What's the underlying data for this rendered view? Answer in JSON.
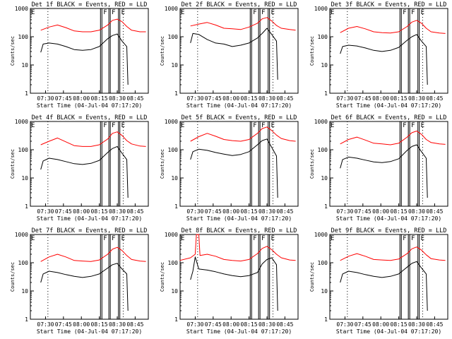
{
  "colors": {
    "events": "#000000",
    "lld": "#ff0000",
    "background": "#ffffff"
  },
  "common": {
    "ylabel": "Counts/sec",
    "xlabel": "Start Time (04-Jul-04 07:17:20)",
    "xticks": [
      "07:30",
      "07:45",
      "08:00",
      "08:15",
      "08:30",
      "08:45"
    ],
    "yticks": [
      "1",
      "10",
      "100",
      "1000"
    ],
    "ylim": [
      1,
      1000
    ],
    "yscale": "log",
    "xlim": [
      "07:17:20",
      "08:56"
    ],
    "dotted_lines": [
      "07:32",
      "08:35"
    ],
    "markers": [
      {
        "time": "08:16",
        "label": "F"
      },
      {
        "time": "08:23",
        "label": "F"
      },
      {
        "time": "08:31",
        "label": "E"
      }
    ],
    "left_marker": "E"
  },
  "chart_data": [
    {
      "type": "line",
      "title": "Det 1f BLACK = Events, RED = LLD",
      "series": [
        {
          "x": [
            "07:26",
            "07:33",
            "07:40",
            "07:47",
            "07:54",
            "08:01",
            "08:08",
            "08:15",
            "08:22",
            "08:26",
            "08:30",
            "08:34",
            "08:38",
            "08:42",
            "08:49",
            "08:54"
          ],
          "values": [
            170,
            220,
            260,
            210,
            160,
            150,
            150,
            170,
            260,
            380,
            420,
            340,
            230,
            170,
            150,
            150
          ]
        },
        {
          "x": [
            "07:26",
            "07:28",
            "07:33",
            "07:40",
            "07:47",
            "07:54",
            "08:01",
            "08:08",
            "08:15",
            "08:22",
            "08:26",
            "08:30",
            "08:34",
            "08:38",
            "08:39"
          ],
          "values": [
            28,
            55,
            60,
            55,
            45,
            35,
            33,
            35,
            45,
            85,
            110,
            125,
            70,
            45,
            2
          ]
        }
      ]
    },
    {
      "type": "line",
      "title": "Det 2f BLACK = Events, RED = LLD",
      "series": [
        {
          "x": [
            "07:26",
            "07:33",
            "07:40",
            "07:47",
            "07:54",
            "08:01",
            "08:08",
            "08:15",
            "08:22",
            "08:26",
            "08:30",
            "08:34",
            "08:38",
            "08:42",
            "08:49",
            "08:54"
          ],
          "values": [
            240,
            280,
            320,
            260,
            200,
            190,
            180,
            220,
            300,
            430,
            480,
            360,
            250,
            200,
            180,
            170
          ]
        },
        {
          "x": [
            "07:26",
            "07:28",
            "07:33",
            "07:40",
            "07:47",
            "07:54",
            "08:01",
            "08:08",
            "08:15",
            "08:22",
            "08:26",
            "08:30",
            "08:34",
            "08:38",
            "08:39"
          ],
          "values": [
            60,
            130,
            120,
            80,
            60,
            55,
            45,
            50,
            60,
            90,
            130,
            200,
            120,
            70,
            3
          ]
        }
      ]
    },
    {
      "type": "line",
      "title": "Det 3f BLACK = Events, RED = LLD",
      "series": [
        {
          "x": [
            "07:26",
            "07:33",
            "07:40",
            "07:47",
            "07:54",
            "08:01",
            "08:08",
            "08:15",
            "08:22",
            "08:26",
            "08:30",
            "08:34",
            "08:38",
            "08:42",
            "08:49",
            "08:54"
          ],
          "values": [
            140,
            200,
            230,
            190,
            150,
            140,
            135,
            150,
            230,
            330,
            380,
            300,
            200,
            150,
            135,
            130
          ]
        },
        {
          "x": [
            "07:26",
            "07:28",
            "07:33",
            "07:40",
            "07:47",
            "07:54",
            "08:01",
            "08:08",
            "08:15",
            "08:22",
            "08:26",
            "08:30",
            "08:34",
            "08:38",
            "08:39"
          ],
          "values": [
            25,
            45,
            50,
            47,
            40,
            33,
            30,
            33,
            42,
            75,
            100,
            120,
            70,
            45,
            2
          ]
        }
      ]
    },
    {
      "type": "line",
      "title": "Det 4f BLACK = Events, RED = LLD",
      "series": [
        {
          "x": [
            "07:26",
            "07:33",
            "07:40",
            "07:47",
            "07:54",
            "08:01",
            "08:08",
            "08:15",
            "08:22",
            "08:26",
            "08:30",
            "08:34",
            "08:38",
            "08:42",
            "08:49",
            "08:54"
          ],
          "values": [
            150,
            200,
            260,
            190,
            140,
            130,
            130,
            150,
            240,
            380,
            430,
            320,
            210,
            160,
            135,
            130
          ]
        },
        {
          "x": [
            "07:26",
            "07:28",
            "07:33",
            "07:40",
            "07:47",
            "07:54",
            "08:01",
            "08:08",
            "08:15",
            "08:22",
            "08:26",
            "08:30",
            "08:34",
            "08:38",
            "08:39"
          ],
          "values": [
            20,
            40,
            50,
            45,
            38,
            32,
            30,
            33,
            42,
            80,
            110,
            130,
            75,
            45,
            2
          ]
        }
      ]
    },
    {
      "type": "line",
      "title": "Det 5f BLACK = Events, RED = LLD",
      "series": [
        {
          "x": [
            "07:26",
            "07:33",
            "07:40",
            "07:47",
            "07:54",
            "08:01",
            "08:08",
            "08:15",
            "08:22",
            "08:26",
            "08:30",
            "08:34",
            "08:38",
            "08:42",
            "08:49",
            "08:54"
          ],
          "values": [
            200,
            290,
            380,
            300,
            230,
            210,
            200,
            230,
            380,
            560,
            640,
            480,
            330,
            250,
            210,
            200
          ]
        },
        {
          "x": [
            "07:26",
            "07:28",
            "07:33",
            "07:40",
            "07:47",
            "07:54",
            "08:01",
            "08:08",
            "08:15",
            "08:22",
            "08:26",
            "08:30",
            "08:34",
            "08:38",
            "08:39"
          ],
          "values": [
            45,
            85,
            105,
            95,
            80,
            70,
            62,
            68,
            85,
            150,
            210,
            240,
            120,
            60,
            2
          ]
        }
      ]
    },
    {
      "type": "line",
      "title": "Det 6f BLACK = Events, RED = LLD",
      "series": [
        {
          "x": [
            "07:26",
            "07:33",
            "07:40",
            "07:47",
            "07:54",
            "08:01",
            "08:08",
            "08:15",
            "08:22",
            "08:26",
            "08:30",
            "08:34",
            "08:38",
            "08:42",
            "08:49",
            "08:54"
          ],
          "values": [
            160,
            230,
            280,
            220,
            170,
            160,
            150,
            170,
            280,
            400,
            460,
            350,
            230,
            180,
            160,
            155
          ]
        },
        {
          "x": [
            "07:26",
            "07:28",
            "07:33",
            "07:40",
            "07:47",
            "07:54",
            "08:01",
            "08:08",
            "08:15",
            "08:22",
            "08:26",
            "08:30",
            "08:34",
            "08:38",
            "08:39"
          ],
          "values": [
            22,
            45,
            55,
            50,
            43,
            37,
            35,
            38,
            48,
            95,
            130,
            150,
            85,
            50,
            2
          ]
        }
      ]
    },
    {
      "type": "line",
      "title": "Det 7f BLACK = Events, RED = LLD",
      "series": [
        {
          "x": [
            "07:26",
            "07:33",
            "07:40",
            "07:47",
            "07:54",
            "08:01",
            "08:08",
            "08:15",
            "08:22",
            "08:26",
            "08:30",
            "08:34",
            "08:38",
            "08:42",
            "08:49",
            "08:54"
          ],
          "values": [
            110,
            160,
            200,
            160,
            120,
            115,
            110,
            125,
            200,
            300,
            350,
            270,
            180,
            130,
            115,
            110
          ]
        },
        {
          "x": [
            "07:26",
            "07:28",
            "07:33",
            "07:40",
            "07:47",
            "07:54",
            "08:01",
            "08:08",
            "08:15",
            "08:22",
            "08:26",
            "08:30",
            "08:34",
            "08:38",
            "08:39"
          ],
          "values": [
            20,
            40,
            50,
            45,
            38,
            33,
            30,
            33,
            40,
            65,
            85,
            95,
            60,
            40,
            2
          ]
        }
      ]
    },
    {
      "type": "line",
      "title": "Det 8f BLACK = Events, RED = LLD",
      "series": [
        {
          "x": [
            "07:17",
            "07:26",
            "07:30",
            "07:31",
            "07:33",
            "07:34",
            "07:40",
            "07:47",
            "07:54",
            "08:01",
            "08:08",
            "08:15",
            "08:22",
            "08:26",
            "08:30",
            "08:34",
            "08:38",
            "08:42",
            "08:49",
            "08:54"
          ],
          "values": [
            120,
            150,
            200,
            1000,
            1000,
            180,
            200,
            170,
            130,
            120,
            115,
            130,
            210,
            320,
            380,
            290,
            200,
            150,
            125,
            120
          ]
        },
        {
          "x": [
            "07:26",
            "07:28",
            "07:30",
            "07:33",
            "07:40",
            "07:47",
            "07:54",
            "08:01",
            "08:08",
            "08:15",
            "08:22",
            "08:26",
            "08:30",
            "08:34",
            "08:38",
            "08:39"
          ],
          "values": [
            25,
            50,
            160,
            60,
            55,
            48,
            40,
            35,
            32,
            35,
            45,
            90,
            130,
            150,
            85,
            2
          ]
        }
      ]
    },
    {
      "type": "line",
      "title": "Det 9f BLACK = Events, RED = LLD",
      "series": [
        {
          "x": [
            "07:26",
            "07:33",
            "07:40",
            "07:47",
            "07:54",
            "08:01",
            "08:08",
            "08:15",
            "08:22",
            "08:26",
            "08:30",
            "08:34",
            "08:38",
            "08:42",
            "08:49",
            "08:54"
          ],
          "values": [
            120,
            170,
            210,
            170,
            130,
            125,
            120,
            135,
            210,
            310,
            360,
            280,
            190,
            140,
            125,
            120
          ]
        },
        {
          "x": [
            "07:26",
            "07:28",
            "07:33",
            "07:40",
            "07:47",
            "07:54",
            "08:01",
            "08:08",
            "08:15",
            "08:22",
            "08:26",
            "08:30",
            "08:34",
            "08:38",
            "08:39"
          ],
          "values": [
            20,
            40,
            50,
            45,
            38,
            33,
            30,
            33,
            40,
            70,
            95,
            110,
            65,
            40,
            2
          ]
        }
      ]
    }
  ]
}
